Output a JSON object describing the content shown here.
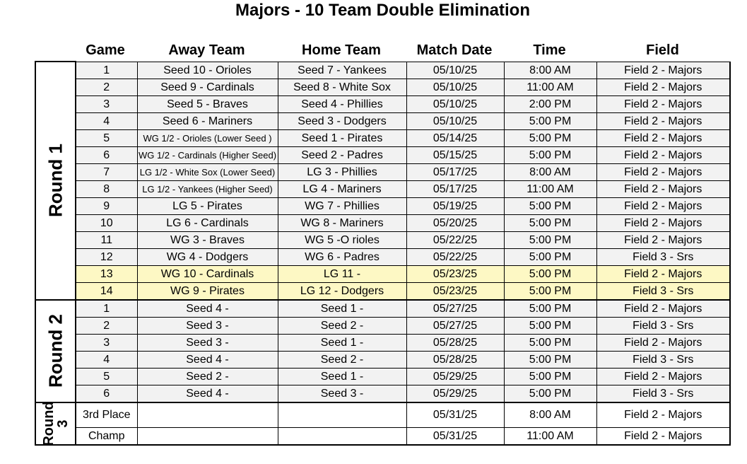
{
  "title": "Majors - 10 Team Double Elimination",
  "headers": {
    "game": "Game",
    "away": "Away Team",
    "home": "Home Team",
    "date": "Match Date",
    "time": "Time",
    "field": "Field"
  },
  "rounds": [
    {
      "label": "Round 1",
      "rows": [
        {
          "game": "1",
          "away": "Seed 10 - Orioles",
          "home": "Seed 7 - Yankees",
          "date": "05/10/25",
          "time": "8:00 AM",
          "field": "Field 2 - Majors"
        },
        {
          "game": "2",
          "away": "Seed 9 - Cardinals",
          "home": "Seed 8 - White Sox",
          "date": "05/10/25",
          "time": "11:00 AM",
          "field": "Field 2 - Majors"
        },
        {
          "game": "3",
          "away": "Seed 5 - Braves",
          "home": "Seed 4 - Phillies",
          "date": "05/10/25",
          "time": "2:00 PM",
          "field": "Field 2 - Majors"
        },
        {
          "game": "4",
          "away": "Seed 6 - Mariners",
          "home": "Seed 3 - Dodgers",
          "date": "05/10/25",
          "time": "5:00 PM",
          "field": "Field 2 - Majors"
        },
        {
          "game": "5",
          "away": "WG 1/2 - Orioles (Lower Seed )",
          "home": "Seed 1 - Pirates",
          "date": "05/14/25",
          "time": "5:00 PM",
          "field": "Field 2 - Majors"
        },
        {
          "game": "6",
          "away": "WG 1/2 - Cardinals (Higher Seed)",
          "home": "Seed 2 - Padres",
          "date": "05/15/25",
          "time": "5:00 PM",
          "field": "Field 2 - Majors"
        },
        {
          "game": "7",
          "away": "LG 1/2 - White Sox (Lower Seed)",
          "home": "LG 3 - Phillies",
          "date": "05/17/25",
          "time": "8:00 AM",
          "field": "Field 2 - Majors"
        },
        {
          "game": "8",
          "away": "LG 1/2 - Yankees (Higher Seed)",
          "home": "LG 4 - Mariners",
          "date": "05/17/25",
          "time": "11:00 AM",
          "field": "Field 2 - Majors"
        },
        {
          "game": "9",
          "away": "LG 5 - Pirates",
          "home": "WG 7 - Phillies",
          "date": "05/19/25",
          "time": "5:00 PM",
          "field": "Field 2 - Majors"
        },
        {
          "game": "10",
          "away": "LG 6 - Cardinals",
          "home": "WG 8 - Mariners",
          "date": "05/20/25",
          "time": "5:00 PM",
          "field": "Field 2 - Majors"
        },
        {
          "game": "11",
          "away": "WG 3 - Braves",
          "home": "WG 5 -O rioles",
          "date": "05/22/25",
          "time": "5:00 PM",
          "field": "Field 2 - Majors"
        },
        {
          "game": "12",
          "away": "WG 4 - Dodgers",
          "home": "WG 6 - Padres",
          "date": "05/22/25",
          "time": "5:00 PM",
          "field": "Field 3 - Srs"
        },
        {
          "game": "13",
          "away": "WG 10 - Cardinals",
          "home": "LG 11 -",
          "date": "05/23/25",
          "time": "5:00 PM",
          "field": "Field 2 - Majors"
        },
        {
          "game": "14",
          "away": "WG 9 - Pirates",
          "home": "LG 12 - Dodgers",
          "date": "05/23/25",
          "time": "5:00 PM",
          "field": "Field 3 - Srs"
        }
      ]
    },
    {
      "label": "Round 2",
      "rows": [
        {
          "game": "1",
          "away": "Seed 4 -",
          "home": "Seed 1 -",
          "date": "05/27/25",
          "time": "5:00 PM",
          "field": "Field 2 - Majors"
        },
        {
          "game": "2",
          "away": "Seed 3 -",
          "home": "Seed 2 -",
          "date": "05/27/25",
          "time": "5:00 PM",
          "field": "Field 3 - Srs"
        },
        {
          "game": "3",
          "away": "Seed 3 -",
          "home": "Seed 1 -",
          "date": "05/28/25",
          "time": "5:00 PM",
          "field": "Field 2 - Majors"
        },
        {
          "game": "4",
          "away": "Seed 4 -",
          "home": "Seed 2 -",
          "date": "05/28/25",
          "time": "5:00 PM",
          "field": "Field 3 - Srs"
        },
        {
          "game": "5",
          "away": "Seed 2 -",
          "home": "Seed 1 -",
          "date": "05/29/25",
          "time": "5:00 PM",
          "field": "Field 2 - Majors"
        },
        {
          "game": "6",
          "away": "Seed 4 -",
          "home": "Seed 3 -",
          "date": "05/29/25",
          "time": "5:00 PM",
          "field": "Field 3 - Srs"
        }
      ]
    },
    {
      "label_line1": "Round",
      "label_line2": "3",
      "rows": [
        {
          "game": "3rd Place",
          "away": "",
          "home": "",
          "date": "05/31/25",
          "time": "8:00 AM",
          "field": "Field 2 - Majors"
        },
        {
          "game": "Champ",
          "away": "",
          "home": "",
          "date": "05/31/25",
          "time": "11:00 AM",
          "field": "Field 2 - Majors"
        }
      ]
    }
  ],
  "highlight_color": "#fdf8c4",
  "row_fill_color": "#f2f2f2"
}
